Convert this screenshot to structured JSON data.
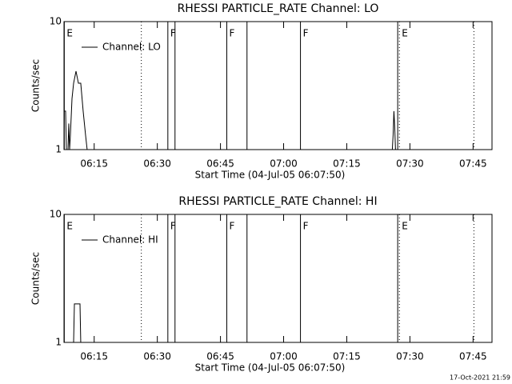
{
  "chart_data": [
    {
      "type": "line",
      "title": "RHESSI PARTICLE_RATE Channel: LO",
      "xlabel": "Start Time (04-Jul-05 06:07:50)",
      "ylabel": "Counts/sec",
      "log_y": true,
      "color": "#000000",
      "legend": "top-left",
      "xlim": [
        7.83,
        109.5
      ],
      "ylim": [
        1,
        10
      ],
      "yticks": [
        1,
        10
      ],
      "xticks": [
        {
          "value": 15,
          "label": "06:15"
        },
        {
          "value": 30,
          "label": "06:30"
        },
        {
          "value": 45,
          "label": "06:45"
        },
        {
          "value": 60,
          "label": "07:00"
        },
        {
          "value": 75,
          "label": "07:15"
        },
        {
          "value": 90,
          "label": "07:30"
        },
        {
          "value": 105,
          "label": "07:45"
        }
      ],
      "series": [
        {
          "name": "Channel: LO",
          "color": "#000000",
          "x": [
            7.83,
            8.21,
            8.4,
            8.78,
            8.97,
            9.16,
            9.35,
            9.73,
            10.11,
            10.68,
            11.25,
            11.81,
            12.38,
            12.95,
            13.33,
            85.82,
            86.01,
            86.2,
            86.39,
            86.58
          ],
          "values": [
            2,
            2,
            1,
            1,
            1.6,
            1,
            1.3,
            2.5,
            3.3,
            4.1,
            3.3,
            3.3,
            2,
            1.3,
            1,
            1,
            1.3,
            2,
            1.5,
            1
          ]
        }
      ],
      "markers": [
        {
          "x": 7.9,
          "style": "solid",
          "label": "E"
        },
        {
          "x": 26.2,
          "style": "dotted"
        },
        {
          "x": 32.5,
          "style": "solid",
          "label": "F"
        },
        {
          "x": 34.2,
          "style": "solid"
        },
        {
          "x": 46.5,
          "style": "solid",
          "label": "F"
        },
        {
          "x": 51.3,
          "style": "solid"
        },
        {
          "x": 64.0,
          "style": "solid",
          "label": "F"
        },
        {
          "x": 87.1,
          "style": "solid"
        },
        {
          "x": 87.5,
          "style": "dotted",
          "label": "E"
        },
        {
          "x": 105.2,
          "style": "dotted"
        }
      ]
    },
    {
      "type": "line",
      "title": "RHESSI PARTICLE_RATE Channel: HI",
      "xlabel": "Start Time (04-Jul-05 06:07:50)",
      "ylabel": "Counts/sec",
      "log_y": true,
      "color": "#000000",
      "legend": "top-left",
      "xlim": [
        7.83,
        109.5
      ],
      "ylim": [
        1,
        10
      ],
      "yticks": [
        1,
        10
      ],
      "xticks": [
        {
          "value": 15,
          "label": "06:15"
        },
        {
          "value": 30,
          "label": "06:30"
        },
        {
          "value": 45,
          "label": "06:45"
        },
        {
          "value": 60,
          "label": "07:00"
        },
        {
          "value": 75,
          "label": "07:15"
        },
        {
          "value": 90,
          "label": "07:30"
        },
        {
          "value": 105,
          "label": "07:45"
        }
      ],
      "series": [
        {
          "name": "Channel: HI",
          "color": "#000000",
          "x": [
            7.83,
            10.11,
            10.3,
            11.63,
            11.81,
            109.5
          ],
          "values": [
            1,
            1,
            2,
            2,
            1,
            1
          ]
        }
      ],
      "markers": [
        {
          "x": 7.9,
          "style": "solid",
          "label": "E"
        },
        {
          "x": 26.2,
          "style": "dotted"
        },
        {
          "x": 32.5,
          "style": "solid",
          "label": "F"
        },
        {
          "x": 34.2,
          "style": "solid"
        },
        {
          "x": 46.5,
          "style": "solid",
          "label": "F"
        },
        {
          "x": 51.3,
          "style": "solid"
        },
        {
          "x": 64.0,
          "style": "solid",
          "label": "F"
        },
        {
          "x": 87.1,
          "style": "solid"
        },
        {
          "x": 87.5,
          "style": "dotted",
          "label": "E"
        },
        {
          "x": 105.2,
          "style": "dotted"
        }
      ]
    }
  ],
  "footer": "17-Oct-2021 21:59"
}
